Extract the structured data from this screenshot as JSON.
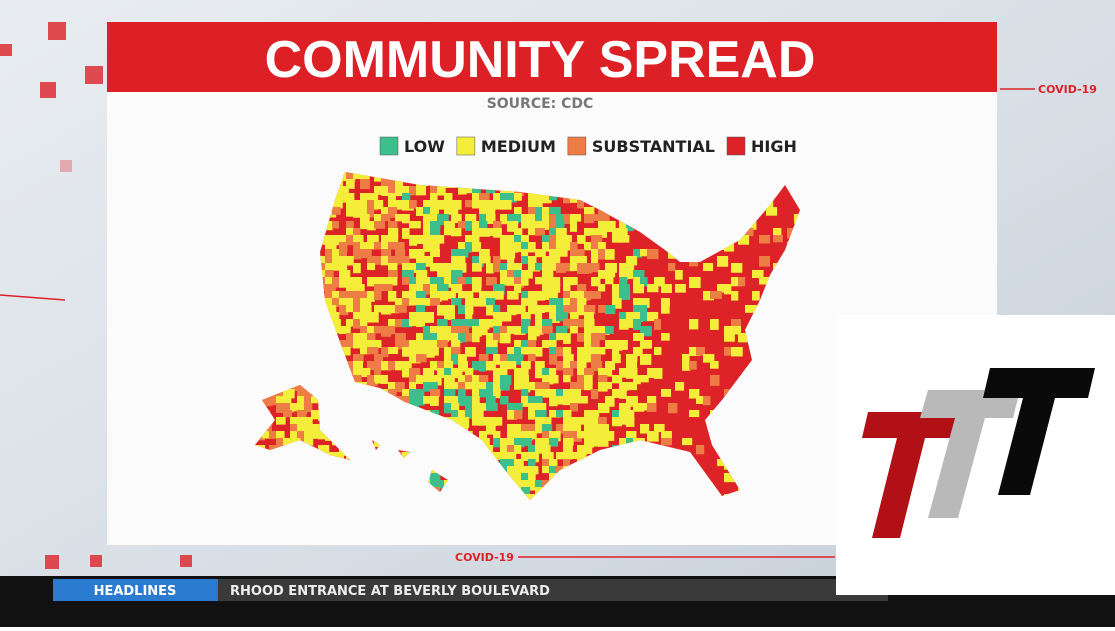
{
  "header": {
    "title": "COMMUNITY SPREAD",
    "source": "SOURCE: CDC"
  },
  "legend": [
    {
      "label": "LOW",
      "color": "#3dbf8c"
    },
    {
      "label": "MEDIUM",
      "color": "#f4ee3a"
    },
    {
      "label": "SUBSTANTIAL",
      "color": "#ee7d45"
    },
    {
      "label": "HIGH",
      "color": "#dd2228"
    }
  ],
  "tags": [
    "COVID-19",
    "COVID-19"
  ],
  "ticker": {
    "section": "HEADLINES",
    "headline": "RHOOD ENTRANCE AT BEVERLY BOULEVARD"
  }
}
